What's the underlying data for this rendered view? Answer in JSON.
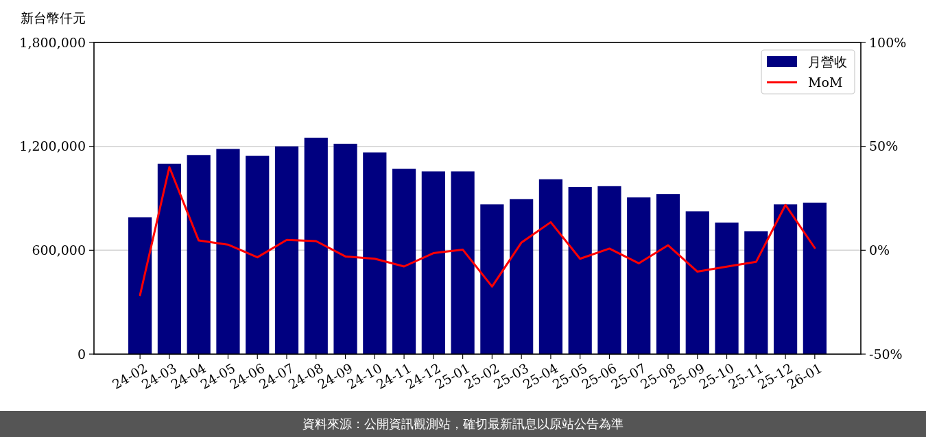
{
  "chart_data": {
    "type": "bar",
    "ylabel": "新台幣仟元",
    "categories": [
      "24-02",
      "24-03",
      "24-04",
      "24-05",
      "24-06",
      "24-07",
      "24-08",
      "24-09",
      "24-10",
      "24-11",
      "24-12",
      "25-01",
      "25-02",
      "25-03",
      "25-04",
      "25-05",
      "25-06",
      "25-07",
      "25-08",
      "25-09",
      "25-10",
      "25-11",
      "25-12",
      "26-01"
    ],
    "ylim": [
      0,
      1800000
    ],
    "yticks": [
      0,
      {
        "value": 600000,
        "label": "600,000"
      },
      {
        "value": 1200000,
        "label": "1,200,000"
      },
      {
        "value": 1800000,
        "label": "1,800,000"
      }
    ],
    "y2lim": [
      -50,
      100
    ],
    "y2ticks": [
      {
        "value": -50,
        "label": "-50%"
      },
      {
        "value": 0,
        "label": "0%"
      },
      {
        "value": 50,
        "label": "50%"
      },
      {
        "value": 100,
        "label": "100%"
      }
    ],
    "series": [
      {
        "name": "月營收",
        "color": "#000080",
        "values": [
          790000,
          1100000,
          1150000,
          1185000,
          1145000,
          1200000,
          1250000,
          1215000,
          1165000,
          1070000,
          1055000,
          1055000,
          865000,
          895000,
          1010000,
          965000,
          970000,
          905000,
          925000,
          825000,
          760000,
          710000,
          865000,
          875000
        ]
      },
      {
        "name": "MoM",
        "type": "line",
        "axis": "y2",
        "color": "#ff0000",
        "values": [
          -21.6,
          40.0,
          4.7,
          2.7,
          -3.4,
          5.0,
          4.4,
          -3.0,
          -4.1,
          -7.8,
          -1.4,
          0.3,
          -17.5,
          3.7,
          13.5,
          -4.1,
          0.8,
          -6.3,
          2.4,
          -10.3,
          -7.9,
          -5.6,
          21.8,
          1.1
        ]
      }
    ],
    "grid": "y",
    "legend": "top right",
    "annotations": [
      "資料來源：公開資訊觀測站，確切最新訊息以原站公告為準"
    ]
  }
}
